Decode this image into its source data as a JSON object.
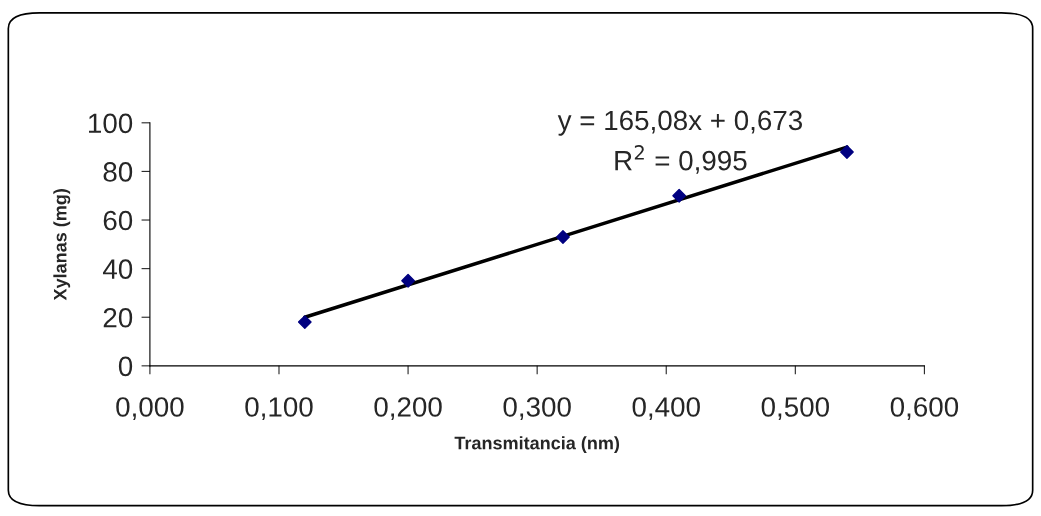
{
  "chart_data": {
    "type": "scatter",
    "xlabel": "Transmitancia (nm)",
    "ylabel": "Xylanas (mg)",
    "xlim": [
      0,
      0.6
    ],
    "ylim": [
      0,
      100
    ],
    "xticks": [
      {
        "value": 0,
        "label": "0,000"
      },
      {
        "value": 0.1,
        "label": "0,100"
      },
      {
        "value": 0.2,
        "label": "0,200"
      },
      {
        "value": 0.3,
        "label": "0,300"
      },
      {
        "value": 0.4,
        "label": "0,400"
      },
      {
        "value": 0.5,
        "label": "0,500"
      },
      {
        "value": 0.6,
        "label": "0,600"
      }
    ],
    "yticks": [
      0,
      20,
      40,
      60,
      80,
      100
    ],
    "grid": false,
    "legend": false,
    "series": [
      {
        "color": "#000080",
        "marker": "diamond",
        "x": [
          0.12,
          0.2,
          0.32,
          0.41,
          0.54
        ],
        "values": [
          18,
          35,
          53,
          70,
          88
        ]
      },
      {
        "type": "line",
        "color": "#000000",
        "x": [
          0.12,
          0.54
        ],
        "values": [
          20,
          90
        ]
      }
    ],
    "annotations": [
      "y = 165,08x + 0,673",
      "R$^{2}$ = 0,995"
    ]
  }
}
